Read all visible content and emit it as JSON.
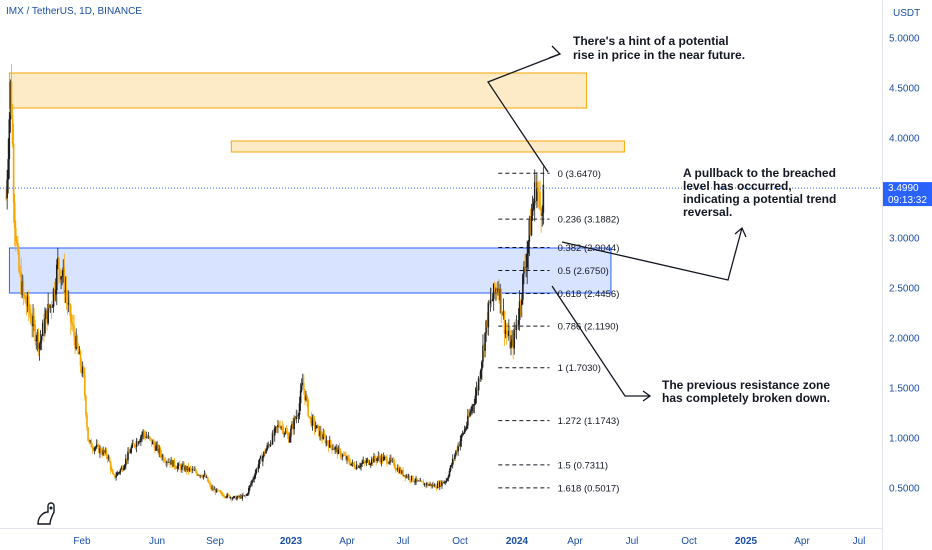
{
  "header": {
    "symbol_line": "IMX / TetherUS, 1D, BINANCE"
  },
  "price_axis": {
    "currency": "USDT",
    "ticks": [
      "5.0000",
      "4.5000",
      "4.0000",
      "3.0000",
      "2.5000",
      "2.0000",
      "1.5000",
      "1.0000",
      "0.5000"
    ],
    "tick_values": [
      5.0,
      4.5,
      4.0,
      3.0,
      2.5,
      2.0,
      1.5,
      1.0,
      0.5
    ]
  },
  "current_price": {
    "label": "3.4990",
    "countdown": "09:13:32",
    "value": 3.499,
    "color": "#2962ff"
  },
  "time_axis": {
    "labels": [
      "Feb",
      "Jun",
      "Sep",
      "2023",
      "Apr",
      "Jul",
      "Oct",
      "2024",
      "Apr",
      "Jul",
      "Oct",
      "2025",
      "Apr",
      "Jul"
    ],
    "bold": [
      "2023",
      "2024",
      "2025"
    ]
  },
  "chart_data": {
    "type": "candlestick",
    "ylim": [
      0.1,
      5.2
    ],
    "xlim": [
      "2022-01-01",
      "2025-08-01"
    ],
    "colors": {
      "up": "#1e1e1e",
      "down": "#f7a600",
      "zone": "#f7a600",
      "support": "#2962ff"
    },
    "price_path": [
      [
        "2022-01-10",
        3.4
      ],
      [
        "2022-01-17",
        4.6
      ],
      [
        "2022-01-22",
        3.3
      ],
      [
        "2022-01-28",
        2.7
      ],
      [
        "2022-02-05",
        2.4
      ],
      [
        "2022-02-12",
        2.3
      ],
      [
        "2022-02-20",
        2.1
      ],
      [
        "2022-03-01",
        1.95
      ],
      [
        "2022-03-10",
        2.2
      ],
      [
        "2022-03-20",
        2.4
      ],
      [
        "2022-03-28",
        2.75
      ],
      [
        "2022-04-05",
        2.6
      ],
      [
        "2022-04-15",
        2.2
      ],
      [
        "2022-04-25",
        1.9
      ],
      [
        "2022-05-05",
        1.6
      ],
      [
        "2022-05-12",
        0.95
      ],
      [
        "2022-05-25",
        0.9
      ],
      [
        "2022-06-10",
        0.82
      ],
      [
        "2022-06-18",
        0.6
      ],
      [
        "2022-07-01",
        0.7
      ],
      [
        "2022-07-15",
        0.9
      ],
      [
        "2022-08-01",
        1.05
      ],
      [
        "2022-08-15",
        0.95
      ],
      [
        "2022-09-01",
        0.8
      ],
      [
        "2022-09-20",
        0.72
      ],
      [
        "2022-10-10",
        0.68
      ],
      [
        "2022-11-01",
        0.62
      ],
      [
        "2022-11-10",
        0.5
      ],
      [
        "2022-11-25",
        0.44
      ],
      [
        "2022-12-15",
        0.4
      ],
      [
        "2023-01-01",
        0.42
      ],
      [
        "2023-01-20",
        0.75
      ],
      [
        "2023-02-05",
        0.95
      ],
      [
        "2023-02-20",
        1.15
      ],
      [
        "2023-03-05",
        1.0
      ],
      [
        "2023-03-20",
        1.3
      ],
      [
        "2023-03-26",
        1.55
      ],
      [
        "2023-04-05",
        1.2
      ],
      [
        "2023-04-25",
        1.0
      ],
      [
        "2023-05-20",
        0.85
      ],
      [
        "2023-06-10",
        0.72
      ],
      [
        "2023-06-25",
        0.75
      ],
      [
        "2023-07-15",
        0.8
      ],
      [
        "2023-08-01",
        0.78
      ],
      [
        "2023-08-20",
        0.65
      ],
      [
        "2023-09-15",
        0.55
      ],
      [
        "2023-10-10",
        0.52
      ],
      [
        "2023-10-25",
        0.58
      ],
      [
        "2023-11-10",
        0.9
      ],
      [
        "2023-11-25",
        1.15
      ],
      [
        "2023-12-10",
        1.5
      ],
      [
        "2023-12-27",
        2.3
      ],
      [
        "2024-01-10",
        2.55
      ],
      [
        "2024-01-20",
        2.1
      ],
      [
        "2024-01-30",
        1.9
      ],
      [
        "2024-02-08",
        2.2
      ],
      [
        "2024-02-18",
        2.7
      ],
      [
        "2024-02-28",
        3.2
      ],
      [
        "2024-03-06",
        3.55
      ],
      [
        "2024-03-12",
        3.3
      ],
      [
        "2024-03-18",
        3.5
      ]
    ],
    "zones": [
      {
        "kind": "resistance",
        "from": "2022-01-15",
        "to": "2024-05-20",
        "bottom": 4.3,
        "top": 4.65
      },
      {
        "kind": "resistance",
        "from": "2022-12-10",
        "to": "2024-07-15",
        "bottom": 3.86,
        "top": 3.97
      },
      {
        "kind": "support",
        "from": "2022-01-15",
        "to": "2024-06-25",
        "bottom": 2.45,
        "top": 2.9
      }
    ],
    "fibonacci": [
      {
        "label": "0 (3.6470)",
        "value": 3.647
      },
      {
        "label": "0.236 (3.1882)",
        "value": 3.1882
      },
      {
        "label": "0.382 (2.9044)",
        "value": 2.9044
      },
      {
        "label": "0.5 (2.6750)",
        "value": 2.675
      },
      {
        "label": "0.618 (2.4456)",
        "value": 2.4456
      },
      {
        "label": "0.786 (2.1190)",
        "value": 2.119
      },
      {
        "label": "1 (1.7030)",
        "value": 1.703
      },
      {
        "label": "1.272 (1.1743)",
        "value": 1.1743
      },
      {
        "label": "1.5 (0.7311)",
        "value": 0.7311
      },
      {
        "label": "1.618 (0.5017)",
        "value": 0.5017
      }
    ],
    "annotations": [
      {
        "lines": [
          "There's a hint of a potential",
          "rise in price in the near future."
        ],
        "target": "zone-top"
      },
      {
        "lines": [
          "A pullback to the breached",
          "level has occurred,",
          "indicating a potential trend",
          "reversal."
        ],
        "target": "right"
      },
      {
        "lines": [
          "The previous resistance zone",
          "has completely broken down."
        ],
        "target": "down"
      }
    ]
  }
}
